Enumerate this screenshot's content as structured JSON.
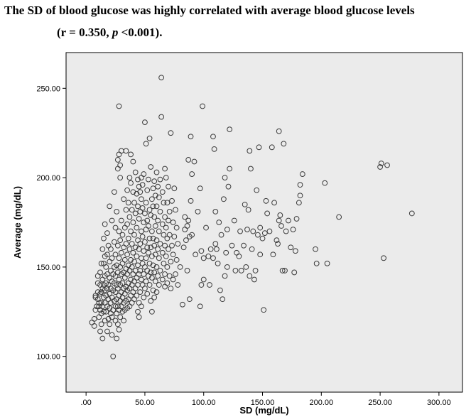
{
  "title_line1": "The SD of blood glucose was highly correlated with average blood glucose levels",
  "title_line2_pre": "(r = 0.350, ",
  "title_line2_p": "p",
  "title_line2_post": " <0.001).",
  "colors": {
    "plot_background": "#ebebeb",
    "marker_stroke": "#3a3a3a",
    "frame": "#000000"
  },
  "chart_data": {
    "type": "scatter",
    "xlabel": "SD (mg/dL)",
    "ylabel": "Average (mg/dL)",
    "xlim": [
      -17,
      320
    ],
    "ylim": [
      80,
      270
    ],
    "x_ticks": [
      0,
      50,
      100,
      150,
      200,
      250,
      300
    ],
    "x_tick_labels": [
      ".00",
      "50.00",
      "100.00",
      "150.00",
      "200.00",
      "250.00",
      "300.00"
    ],
    "y_ticks": [
      100,
      150,
      200,
      250
    ],
    "y_tick_labels": [
      "100.00",
      "150.00",
      "200.00",
      "250.00"
    ],
    "grid": false,
    "marker": "open-circle",
    "points": [
      [
        5,
        119
      ],
      [
        7,
        121
      ],
      [
        7,
        117
      ],
      [
        8,
        126
      ],
      [
        8,
        133
      ],
      [
        8,
        134
      ],
      [
        9,
        128
      ],
      [
        10,
        132
      ],
      [
        10,
        136
      ],
      [
        10,
        141
      ],
      [
        10,
        145
      ],
      [
        11,
        122
      ],
      [
        11,
        128
      ],
      [
        11,
        130
      ],
      [
        12,
        114
      ],
      [
        12,
        126
      ],
      [
        12,
        135
      ],
      [
        12,
        140
      ],
      [
        12,
        147
      ],
      [
        13,
        118
      ],
      [
        13,
        124
      ],
      [
        13,
        130
      ],
      [
        13,
        136
      ],
      [
        13,
        152
      ],
      [
        14,
        110
      ],
      [
        14,
        128
      ],
      [
        14,
        138
      ],
      [
        14,
        143
      ],
      [
        14,
        160
      ],
      [
        15,
        125
      ],
      [
        15,
        133
      ],
      [
        15,
        140
      ],
      [
        15,
        152
      ],
      [
        15,
        166
      ],
      [
        16,
        120
      ],
      [
        16,
        130
      ],
      [
        16,
        137
      ],
      [
        16,
        145
      ],
      [
        16,
        156
      ],
      [
        16,
        174
      ],
      [
        17,
        125
      ],
      [
        17,
        134
      ],
      [
        17,
        141
      ],
      [
        17,
        150
      ],
      [
        18,
        114
      ],
      [
        18,
        128
      ],
      [
        18,
        138
      ],
      [
        18,
        146
      ],
      [
        18,
        157
      ],
      [
        18,
        169
      ],
      [
        19,
        121
      ],
      [
        19,
        132
      ],
      [
        19,
        140
      ],
      [
        19,
        162
      ],
      [
        20,
        118
      ],
      [
        20,
        127
      ],
      [
        20,
        135
      ],
      [
        20,
        144
      ],
      [
        20,
        153
      ],
      [
        20,
        184
      ],
      [
        21,
        124
      ],
      [
        21,
        130
      ],
      [
        21,
        138
      ],
      [
        21,
        148
      ],
      [
        21,
        160
      ],
      [
        22,
        112
      ],
      [
        22,
        122
      ],
      [
        22,
        133
      ],
      [
        22,
        142
      ],
      [
        22,
        155
      ],
      [
        22,
        176
      ],
      [
        23,
        100
      ],
      [
        23,
        126
      ],
      [
        23,
        137
      ],
      [
        23,
        146
      ],
      [
        24,
        131
      ],
      [
        24,
        141
      ],
      [
        24,
        150
      ],
      [
        24,
        164
      ],
      [
        24,
        192
      ],
      [
        25,
        120
      ],
      [
        25,
        128
      ],
      [
        25,
        136
      ],
      [
        25,
        145
      ],
      [
        25,
        157
      ],
      [
        25,
        172
      ],
      [
        26,
        110
      ],
      [
        26,
        124
      ],
      [
        26,
        132
      ],
      [
        26,
        140
      ],
      [
        26,
        151
      ],
      [
        26,
        181
      ],
      [
        27,
        118
      ],
      [
        27,
        128
      ],
      [
        27,
        138
      ],
      [
        27,
        147
      ],
      [
        27,
        162
      ],
      [
        27,
        205
      ],
      [
        27,
        210
      ],
      [
        28,
        115
      ],
      [
        28,
        126
      ],
      [
        28,
        134
      ],
      [
        28,
        143
      ],
      [
        28,
        155
      ],
      [
        28,
        170
      ],
      [
        28,
        213
      ],
      [
        28,
        240
      ],
      [
        29,
        122
      ],
      [
        29,
        131
      ],
      [
        29,
        140
      ],
      [
        29,
        150
      ],
      [
        29,
        165
      ],
      [
        29,
        207
      ],
      [
        29,
        200
      ],
      [
        30,
        128
      ],
      [
        30,
        136
      ],
      [
        30,
        146
      ],
      [
        30,
        158
      ],
      [
        30,
        176
      ],
      [
        30,
        215
      ],
      [
        31,
        125
      ],
      [
        31,
        133
      ],
      [
        31,
        141
      ],
      [
        31,
        152
      ],
      [
        31,
        168
      ],
      [
        32,
        120
      ],
      [
        32,
        130
      ],
      [
        32,
        138
      ],
      [
        32,
        147
      ],
      [
        32,
        161
      ],
      [
        32,
        188
      ],
      [
        33,
        126
      ],
      [
        33,
        135
      ],
      [
        33,
        144
      ],
      [
        33,
        154
      ],
      [
        33,
        172
      ],
      [
        34,
        131
      ],
      [
        34,
        139
      ],
      [
        34,
        149
      ],
      [
        34,
        163
      ],
      [
        34,
        182
      ],
      [
        34,
        215
      ],
      [
        35,
        127
      ],
      [
        35,
        137
      ],
      [
        35,
        146
      ],
      [
        35,
        157
      ],
      [
        35,
        174
      ],
      [
        35,
        193
      ],
      [
        36,
        132
      ],
      [
        36,
        141
      ],
      [
        36,
        151
      ],
      [
        36,
        166
      ],
      [
        36,
        186
      ],
      [
        37,
        128
      ],
      [
        37,
        138
      ],
      [
        37,
        148
      ],
      [
        37,
        160
      ],
      [
        37,
        178
      ],
      [
        37,
        200
      ],
      [
        38,
        134
      ],
      [
        38,
        143
      ],
      [
        38,
        154
      ],
      [
        38,
        170
      ],
      [
        38,
        197
      ],
      [
        38,
        213
      ],
      [
        39,
        130
      ],
      [
        39,
        140
      ],
      [
        39,
        150
      ],
      [
        39,
        163
      ],
      [
        39,
        182
      ],
      [
        40,
        136
      ],
      [
        40,
        146
      ],
      [
        40,
        158
      ],
      [
        40,
        175
      ],
      [
        40,
        192
      ],
      [
        40,
        209
      ],
      [
        41,
        132
      ],
      [
        41,
        142
      ],
      [
        41,
        153
      ],
      [
        41,
        168
      ],
      [
        41,
        186
      ],
      [
        42,
        138
      ],
      [
        42,
        148
      ],
      [
        42,
        161
      ],
      [
        42,
        180
      ],
      [
        42,
        203
      ],
      [
        43,
        134
      ],
      [
        43,
        144
      ],
      [
        43,
        156
      ],
      [
        43,
        172
      ],
      [
        43,
        191
      ],
      [
        44,
        125
      ],
      [
        44,
        140
      ],
      [
        44,
        151
      ],
      [
        44,
        165
      ],
      [
        44,
        184
      ],
      [
        44,
        199
      ],
      [
        45,
        122
      ],
      [
        45,
        130
      ],
      [
        45,
        146
      ],
      [
        45,
        160
      ],
      [
        45,
        177
      ],
      [
        45,
        195
      ],
      [
        46,
        136
      ],
      [
        46,
        148
      ],
      [
        46,
        163
      ],
      [
        46,
        181
      ],
      [
        46,
        192
      ],
      [
        47,
        128
      ],
      [
        47,
        143
      ],
      [
        47,
        155
      ],
      [
        47,
        170
      ],
      [
        47,
        188
      ],
      [
        47,
        200
      ],
      [
        48,
        140
      ],
      [
        48,
        152
      ],
      [
        48,
        167
      ],
      [
        48,
        183
      ],
      [
        48,
        196
      ],
      [
        49,
        133
      ],
      [
        49,
        146
      ],
      [
        49,
        159
      ],
      [
        49,
        175
      ],
      [
        49,
        202
      ],
      [
        50,
        138
      ],
      [
        50,
        150
      ],
      [
        50,
        164
      ],
      [
        50,
        180
      ],
      [
        50,
        231
      ],
      [
        51,
        142
      ],
      [
        51,
        155
      ],
      [
        51,
        171
      ],
      [
        51,
        186
      ],
      [
        51,
        219
      ],
      [
        52,
        135
      ],
      [
        52,
        148
      ],
      [
        52,
        161
      ],
      [
        52,
        176
      ],
      [
        52,
        193
      ],
      [
        53,
        145
      ],
      [
        53,
        158
      ],
      [
        53,
        173
      ],
      [
        53,
        199
      ],
      [
        54,
        140
      ],
      [
        54,
        152
      ],
      [
        54,
        166
      ],
      [
        54,
        182
      ],
      [
        54,
        222
      ],
      [
        55,
        131
      ],
      [
        55,
        147
      ],
      [
        55,
        161
      ],
      [
        55,
        179
      ],
      [
        55,
        206
      ],
      [
        56,
        125
      ],
      [
        56,
        144
      ],
      [
        56,
        156
      ],
      [
        56,
        170
      ],
      [
        56,
        188
      ],
      [
        57,
        137
      ],
      [
        57,
        151
      ],
      [
        57,
        166
      ],
      [
        57,
        184
      ],
      [
        57,
        194
      ],
      [
        58,
        133
      ],
      [
        58,
        147
      ],
      [
        58,
        162
      ],
      [
        58,
        178
      ],
      [
        58,
        198
      ],
      [
        59,
        142
      ],
      [
        59,
        157
      ],
      [
        59,
        173
      ],
      [
        59,
        190
      ],
      [
        60,
        136
      ],
      [
        60,
        150
      ],
      [
        60,
        165
      ],
      [
        60,
        184
      ],
      [
        60,
        203
      ],
      [
        61,
        145
      ],
      [
        61,
        160
      ],
      [
        61,
        176
      ],
      [
        61,
        195
      ],
      [
        62,
        140
      ],
      [
        62,
        155
      ],
      [
        62,
        170
      ],
      [
        62,
        189
      ],
      [
        63,
        148
      ],
      [
        63,
        163
      ],
      [
        63,
        181
      ],
      [
        63,
        199
      ],
      [
        64,
        256
      ],
      [
        64,
        234
      ],
      [
        65,
        143
      ],
      [
        65,
        158
      ],
      [
        65,
        174
      ],
      [
        65,
        192
      ],
      [
        66,
        152
      ],
      [
        66,
        168
      ],
      [
        66,
        186
      ],
      [
        67,
        139
      ],
      [
        67,
        146
      ],
      [
        67,
        162
      ],
      [
        67,
        178
      ],
      [
        67,
        205
      ],
      [
        68,
        156
      ],
      [
        68,
        172
      ],
      [
        68,
        200
      ],
      [
        69,
        141
      ],
      [
        69,
        150
      ],
      [
        69,
        166
      ],
      [
        69,
        186
      ],
      [
        70,
        160
      ],
      [
        70,
        176
      ],
      [
        70,
        195
      ],
      [
        71,
        145
      ],
      [
        71,
        168
      ],
      [
        71,
        181
      ],
      [
        72,
        138
      ],
      [
        72,
        153
      ],
      [
        72,
        225
      ],
      [
        73,
        162
      ],
      [
        73,
        187
      ],
      [
        74,
        143
      ],
      [
        74,
        157
      ],
      [
        74,
        175
      ],
      [
        75,
        167
      ],
      [
        75,
        194
      ],
      [
        76,
        146
      ],
      [
        76,
        182
      ],
      [
        77,
        154
      ],
      [
        77,
        172
      ],
      [
        78,
        140
      ],
      [
        78,
        163
      ],
      [
        80,
        150
      ],
      [
        82,
        129
      ],
      [
        83,
        161
      ],
      [
        84,
        171
      ],
      [
        84,
        178
      ],
      [
        85,
        165
      ],
      [
        86,
        148
      ],
      [
        86,
        173
      ],
      [
        87,
        210
      ],
      [
        87,
        176
      ],
      [
        88,
        132
      ],
      [
        88,
        167
      ],
      [
        89,
        223
      ],
      [
        89,
        187
      ],
      [
        90,
        168
      ],
      [
        90,
        202
      ],
      [
        92,
        209
      ],
      [
        93,
        157
      ],
      [
        95,
        181
      ],
      [
        97,
        128
      ],
      [
        97,
        194
      ],
      [
        98,
        140
      ],
      [
        98,
        159
      ],
      [
        99,
        240
      ],
      [
        100,
        155
      ],
      [
        100,
        143
      ],
      [
        102,
        172
      ],
      [
        104,
        156
      ],
      [
        105,
        140
      ],
      [
        106,
        160
      ],
      [
        108,
        155
      ],
      [
        108,
        223
      ],
      [
        109,
        216
      ],
      [
        110,
        163
      ],
      [
        110,
        181
      ],
      [
        111,
        160
      ],
      [
        112,
        152
      ],
      [
        113,
        175
      ],
      [
        114,
        137
      ],
      [
        115,
        168
      ],
      [
        116,
        132
      ],
      [
        117,
        188
      ],
      [
        118,
        145
      ],
      [
        118,
        200
      ],
      [
        119,
        158
      ],
      [
        120,
        150
      ],
      [
        120,
        171
      ],
      [
        121,
        195
      ],
      [
        122,
        205
      ],
      [
        122,
        227
      ],
      [
        124,
        162
      ],
      [
        126,
        176
      ],
      [
        127,
        148
      ],
      [
        128,
        158
      ],
      [
        130,
        156
      ],
      [
        131,
        170
      ],
      [
        132,
        148
      ],
      [
        134,
        162
      ],
      [
        135,
        185
      ],
      [
        136,
        150
      ],
      [
        137,
        171
      ],
      [
        138,
        182
      ],
      [
        139,
        145
      ],
      [
        139,
        215
      ],
      [
        140,
        205
      ],
      [
        141,
        160
      ],
      [
        142,
        170
      ],
      [
        143,
        143
      ],
      [
        144,
        148
      ],
      [
        145,
        193
      ],
      [
        146,
        168
      ],
      [
        147,
        217
      ],
      [
        148,
        172
      ],
      [
        148,
        157
      ],
      [
        150,
        166
      ],
      [
        151,
        126
      ],
      [
        152,
        169
      ],
      [
        153,
        187
      ],
      [
        154,
        180
      ],
      [
        156,
        170
      ],
      [
        158,
        217
      ],
      [
        159,
        157
      ],
      [
        160,
        186
      ],
      [
        162,
        165
      ],
      [
        163,
        163
      ],
      [
        164,
        176
      ],
      [
        164,
        226
      ],
      [
        165,
        179
      ],
      [
        166,
        173
      ],
      [
        167,
        148
      ],
      [
        168,
        219
      ],
      [
        169,
        148
      ],
      [
        170,
        170
      ],
      [
        172,
        176
      ],
      [
        174,
        161
      ],
      [
        176,
        171
      ],
      [
        177,
        147
      ],
      [
        178,
        159
      ],
      [
        179,
        177
      ],
      [
        181,
        186
      ],
      [
        182,
        190
      ],
      [
        182,
        196
      ],
      [
        184,
        202
      ],
      [
        195,
        160
      ],
      [
        196,
        152
      ],
      [
        203,
        197
      ],
      [
        205,
        152
      ],
      [
        215,
        178
      ],
      [
        250,
        206
      ],
      [
        251,
        208
      ],
      [
        253,
        155
      ],
      [
        256,
        207
      ],
      [
        277,
        180
      ]
    ]
  }
}
